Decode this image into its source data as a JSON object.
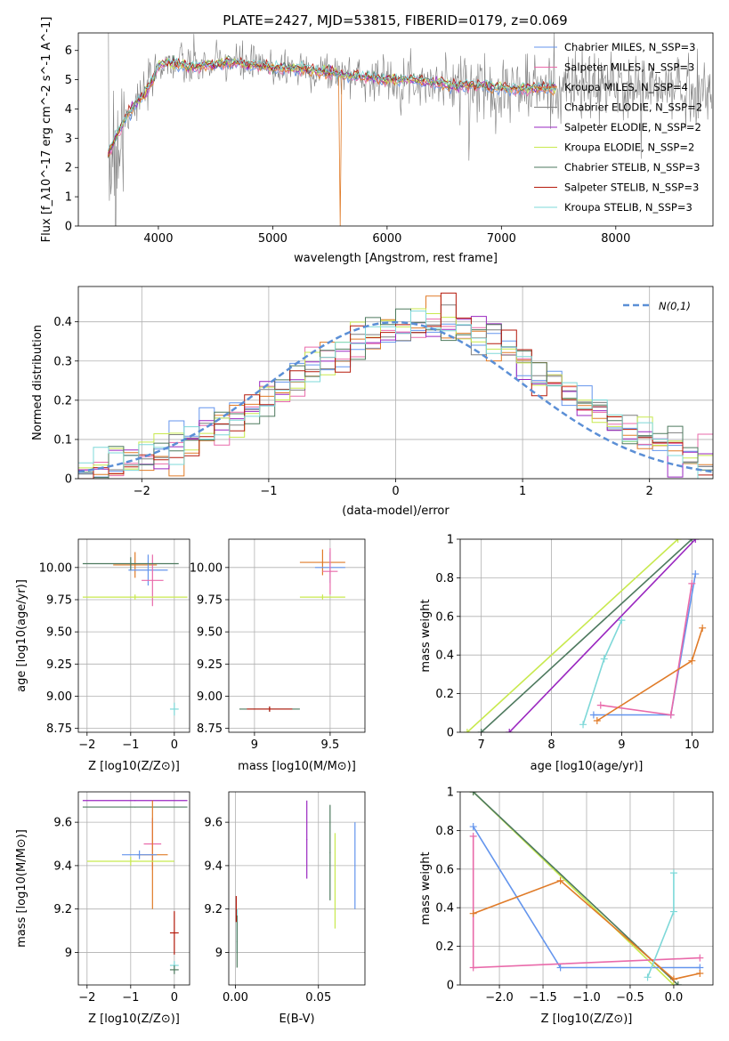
{
  "figure": {
    "title": "PLATE=2427, MJD=53815, FIBERID=0179, z=0.069"
  },
  "colors": [
    "#6495ed",
    "#e96aaa",
    "#e07b28",
    "#7f7f7f",
    "#9a27c0",
    "#c8e94e",
    "#4e7a5f",
    "#b51a0c",
    "#7ed8d8"
  ],
  "chart_data": [
    {
      "id": "spectrum",
      "type": "line",
      "xlabel": "wavelength [Angstrom, rest frame]",
      "ylabel": "Flux [f_λ10^-17 erg cm^-2 s^-1 A^-1]",
      "xlim": [
        3300,
        8850
      ],
      "ylim": [
        0,
        6.6
      ],
      "xticks": [
        4000,
        5000,
        6000,
        7000,
        8000
      ],
      "yticks": [
        0,
        1,
        2,
        3,
        4,
        5,
        6
      ],
      "grid": false,
      "legend_position": "top-right",
      "series": [
        {
          "name": "Chabrier MILES, N_SSP=3",
          "color": "#6495ed"
        },
        {
          "name": "Salpeter MILES, N_SSP=3",
          "color": "#e96aaa"
        },
        {
          "name": "Kroupa MILES, N_SSP=4",
          "color": "#e07b28"
        },
        {
          "name": "Chabrier ELODIE, N_SSP=2",
          "color": "#7f7f7f"
        },
        {
          "name": "Salpeter ELODIE, N_SSP=2",
          "color": "#9a27c0"
        },
        {
          "name": "Kroupa ELODIE, N_SSP=2",
          "color": "#c8e94e"
        },
        {
          "name": "Chabrier STELIB, N_SSP=3",
          "color": "#4e7a5f"
        },
        {
          "name": "Salpeter STELIB, N_SSP=3",
          "color": "#b51a0c"
        },
        {
          "name": "Kroupa STELIB, N_SSP=3",
          "color": "#7ed8d8"
        }
      ],
      "model_curve": {
        "x": [
          3550,
          3600,
          3650,
          3700,
          3750,
          3800,
          3850,
          3900,
          3950,
          4000,
          4100,
          4200,
          4300,
          4400,
          4500,
          4600,
          4800,
          5000,
          5200,
          5400,
          5600,
          5800,
          6000,
          6200,
          6400,
          6600,
          6800,
          7000,
          7200,
          7400,
          7500
        ],
        "y": [
          2.4,
          2.8,
          3.2,
          3.6,
          3.9,
          4.2,
          4.4,
          4.6,
          5.0,
          5.5,
          5.6,
          5.5,
          5.4,
          5.5,
          5.5,
          5.6,
          5.5,
          5.4,
          5.4,
          5.3,
          5.2,
          5.1,
          5.0,
          5.0,
          4.9,
          4.8,
          4.8,
          4.7,
          4.7,
          4.7,
          4.7
        ]
      }
    },
    {
      "id": "residual-histogram",
      "type": "bar",
      "xlabel": "(data-model)/error",
      "ylabel": "Normed distribution",
      "xlim": [
        -2.5,
        2.5
      ],
      "ylim": [
        0,
        0.49
      ],
      "xticks": [
        -2,
        -1,
        0,
        1,
        2
      ],
      "yticks": [
        0.0,
        0.1,
        0.2,
        0.3,
        0.4
      ],
      "grid": true,
      "legend_position": "top-right",
      "reference_label": "N(0,1)",
      "bin_edges_range": [
        -2.5,
        2.5
      ],
      "bins": 42,
      "hist_values": [
        0.02,
        0.03,
        0.04,
        0.05,
        0.06,
        0.07,
        0.08,
        0.1,
        0.12,
        0.14,
        0.16,
        0.18,
        0.2,
        0.23,
        0.25,
        0.28,
        0.31,
        0.33,
        0.35,
        0.37,
        0.38,
        0.39,
        0.4,
        0.4,
        0.39,
        0.38,
        0.37,
        0.35,
        0.33,
        0.3,
        0.27,
        0.25,
        0.22,
        0.19,
        0.17,
        0.15,
        0.12,
        0.1,
        0.08,
        0.07,
        0.05,
        0.04
      ]
    },
    {
      "id": "age-vs-Z",
      "type": "scatter",
      "xlabel": "Z [log10(Z/Z⊙)]",
      "ylabel": "age  [log10(age/yr)]",
      "xlim": [
        -2.2,
        0.35
      ],
      "ylim": [
        8.72,
        10.22
      ],
      "xticks": [
        -2,
        -1,
        0
      ],
      "yticks": [
        8.75,
        9.0,
        9.25,
        9.5,
        9.75,
        10.0
      ],
      "ytick_labels": [
        "8.75",
        "9.00",
        "9.25",
        "9.50",
        "9.75",
        "10.00"
      ],
      "grid": true,
      "points": [
        {
          "x": -0.9,
          "y": 10.02,
          "xerr": 0.5,
          "yerr": 0.1,
          "color": "#e07b28"
        },
        {
          "x": -0.6,
          "y": 9.98,
          "xerr": 0.45,
          "yerr": 0.12,
          "color": "#6495ed"
        },
        {
          "x": -0.5,
          "y": 9.9,
          "xerr": 0.25,
          "yerr": 0.2,
          "color": "#e96aaa"
        },
        {
          "x": -1.0,
          "y": 10.03,
          "xerr": 1.1,
          "yerr": 0.05,
          "color": "#4e7a5f"
        },
        {
          "x": -0.9,
          "y": 9.77,
          "xerr": 1.2,
          "yerr": 0.02,
          "color": "#c8e94e"
        },
        {
          "x": 0.0,
          "y": 8.9,
          "xerr": 0.1,
          "yerr": 0.05,
          "color": "#7ed8d8"
        }
      ]
    },
    {
      "id": "age-vs-mass",
      "type": "scatter",
      "xlabel": "mass [log10(M/M⊙)]",
      "ylabel": "",
      "xlim": [
        8.83,
        9.73
      ],
      "ylim": [
        8.72,
        10.22
      ],
      "xticks": [
        9.0,
        9.5
      ],
      "yticks": [
        8.75,
        9.0,
        9.25,
        9.5,
        9.75,
        10.0
      ],
      "ytick_labels": [
        "8.75",
        "9.00",
        "9.25",
        "9.50",
        "9.75",
        "10.00"
      ],
      "grid": true,
      "points": [
        {
          "x": 9.45,
          "y": 10.04,
          "xerr": 0.15,
          "yerr": 0.1,
          "color": "#e07b28"
        },
        {
          "x": 9.5,
          "y": 10.0,
          "xerr": 0.1,
          "yerr": 0.12,
          "color": "#6495ed"
        },
        {
          "x": 9.5,
          "y": 9.97,
          "xerr": 0.05,
          "yerr": 0.18,
          "color": "#e96aaa"
        },
        {
          "x": 9.45,
          "y": 9.77,
          "xerr": 0.15,
          "yerr": 0.02,
          "color": "#c8e94e"
        },
        {
          "x": 9.1,
          "y": 8.9,
          "xerr": 0.2,
          "yerr": 0.02,
          "color": "#4e7a5f"
        },
        {
          "x": 9.1,
          "y": 8.9,
          "xerr": 0.15,
          "yerr": 0.02,
          "color": "#b51a0c"
        }
      ]
    },
    {
      "id": "mass-weight-vs-age",
      "type": "line",
      "xlabel": "age  [log10(age/yr)]",
      "ylabel": "mass weight",
      "xlim": [
        6.7,
        10.3
      ],
      "ylim": [
        0,
        1.0
      ],
      "xticks": [
        7,
        8,
        9,
        10
      ],
      "yticks": [
        0.0,
        0.2,
        0.4,
        0.6,
        0.8,
        1.0
      ],
      "grid": true,
      "series": [
        {
          "color": "#c8e94e",
          "x": [
            6.8,
            9.8
          ],
          "y": [
            0.0,
            1.0
          ]
        },
        {
          "color": "#4e7a5f",
          "x": [
            7.0,
            10.0
          ],
          "y": [
            0.0,
            1.0
          ]
        },
        {
          "color": "#9a27c0",
          "x": [
            7.4,
            10.05
          ],
          "y": [
            0.0,
            1.0
          ]
        },
        {
          "color": "#6495ed",
          "x": [
            8.6,
            9.7,
            10.05
          ],
          "y": [
            0.09,
            0.09,
            0.82
          ]
        },
        {
          "color": "#e96aaa",
          "x": [
            8.7,
            9.7,
            10.0
          ],
          "y": [
            0.14,
            0.09,
            0.77
          ]
        },
        {
          "color": "#e07b28",
          "x": [
            8.65,
            10.0,
            10.15
          ],
          "y": [
            0.06,
            0.37,
            0.54
          ]
        },
        {
          "color": "#7ed8d8",
          "x": [
            8.45,
            8.75,
            9.0
          ],
          "y": [
            0.04,
            0.38,
            0.58
          ]
        }
      ]
    },
    {
      "id": "mass-vs-Z",
      "type": "scatter",
      "xlabel": "Z [log10(Z/Z⊙)]",
      "ylabel": "mass [log10(M/M⊙)]",
      "xlim": [
        -2.2,
        0.35
      ],
      "ylim": [
        8.85,
        9.74
      ],
      "xticks": [
        -2,
        -1,
        0
      ],
      "yticks": [
        9.0,
        9.2,
        9.4,
        9.6
      ],
      "grid": true,
      "points": [
        {
          "x": -0.9,
          "y": 9.7,
          "xerr": 1.2,
          "yerr": 0.0,
          "color": "#9a27c0"
        },
        {
          "x": -0.9,
          "y": 9.67,
          "xerr": 1.2,
          "yerr": 0.0,
          "color": "#4e7a5f"
        },
        {
          "x": -0.5,
          "y": 9.5,
          "xerr": 0.2,
          "yerr": 0.12,
          "color": "#e96aaa"
        },
        {
          "x": -0.5,
          "y": 9.45,
          "xerr": 0.35,
          "yerr": 0.25,
          "color": "#e07b28"
        },
        {
          "x": -0.8,
          "y": 9.45,
          "xerr": 0.4,
          "yerr": 0.02,
          "color": "#6495ed"
        },
        {
          "x": -1.0,
          "y": 9.42,
          "xerr": 1.0,
          "yerr": 0.02,
          "color": "#c8e94e"
        },
        {
          "x": 0.0,
          "y": 9.09,
          "xerr": 0.1,
          "yerr": 0.1,
          "color": "#b51a0c"
        },
        {
          "x": 0.0,
          "y": 8.94,
          "xerr": 0.1,
          "yerr": 0.02,
          "color": "#7ed8d8"
        },
        {
          "x": 0.0,
          "y": 8.92,
          "xerr": 0.1,
          "yerr": 0.02,
          "color": "#4e7a5f"
        }
      ]
    },
    {
      "id": "mass-vs-ebv",
      "type": "scatter",
      "xlabel": "E(B-V)",
      "ylabel": "",
      "xlim": [
        -0.004,
        0.078
      ],
      "ylim": [
        8.85,
        9.74
      ],
      "xticks": [
        0.0,
        0.05
      ],
      "xtick_labels": [
        "0.00",
        "0.05"
      ],
      "yticks": [
        9.0,
        9.2,
        9.4,
        9.6
      ],
      "grid": true,
      "points": [
        {
          "x": 0.001,
          "y": 9.1,
          "yerr": 0.1,
          "color": "#7ed8d8"
        },
        {
          "x": 0.001,
          "y": 9.05,
          "yerr": 0.12,
          "color": "#4e7a5f"
        },
        {
          "x": 0.0005,
          "y": 9.2,
          "yerr": 0.06,
          "color": "#b51a0c"
        },
        {
          "x": 0.043,
          "y": 9.52,
          "yerr": 0.18,
          "color": "#9a27c0"
        },
        {
          "x": 0.057,
          "y": 9.46,
          "yerr": 0.22,
          "color": "#4e7a5f"
        },
        {
          "x": 0.06,
          "y": 9.33,
          "yerr": 0.22,
          "color": "#c8e94e"
        },
        {
          "x": 0.072,
          "y": 9.4,
          "yerr": 0.2,
          "color": "#6495ed"
        }
      ]
    },
    {
      "id": "mass-weight-vs-Z",
      "type": "line",
      "xlabel": "Z [log10(Z/Z⊙)]",
      "ylabel": "mass weight",
      "xlim": [
        -2.45,
        0.45
      ],
      "ylim": [
        0,
        1.0
      ],
      "xticks": [
        -2.0,
        -1.5,
        -1.0,
        -0.5,
        0.0
      ],
      "xtick_labels": [
        "−2.0",
        "−1.5",
        "−1.0",
        "−0.5",
        "0.0"
      ],
      "yticks": [
        0.0,
        0.2,
        0.4,
        0.6,
        0.8,
        1.0
      ],
      "grid": true,
      "series": [
        {
          "color": "#c8e94e",
          "x": [
            -2.3,
            0.0
          ],
          "y": [
            1.0,
            0.0
          ]
        },
        {
          "color": "#4e7a5f",
          "x": [
            -2.3,
            0.05
          ],
          "y": [
            1.0,
            0.0
          ]
        },
        {
          "color": "#6495ed",
          "x": [
            -2.3,
            -1.3,
            0.3
          ],
          "y": [
            0.82,
            0.09,
            0.09
          ]
        },
        {
          "color": "#e96aaa",
          "x": [
            -2.3,
            -2.3,
            0.3
          ],
          "y": [
            0.77,
            0.09,
            0.14
          ]
        },
        {
          "color": "#e07b28",
          "x": [
            -2.3,
            -1.3,
            0.0,
            0.3
          ],
          "y": [
            0.37,
            0.54,
            0.03,
            0.06
          ]
        },
        {
          "color": "#7ed8d8",
          "x": [
            -0.3,
            0.0,
            0.0
          ],
          "y": [
            0.04,
            0.38,
            0.58
          ]
        }
      ]
    }
  ]
}
